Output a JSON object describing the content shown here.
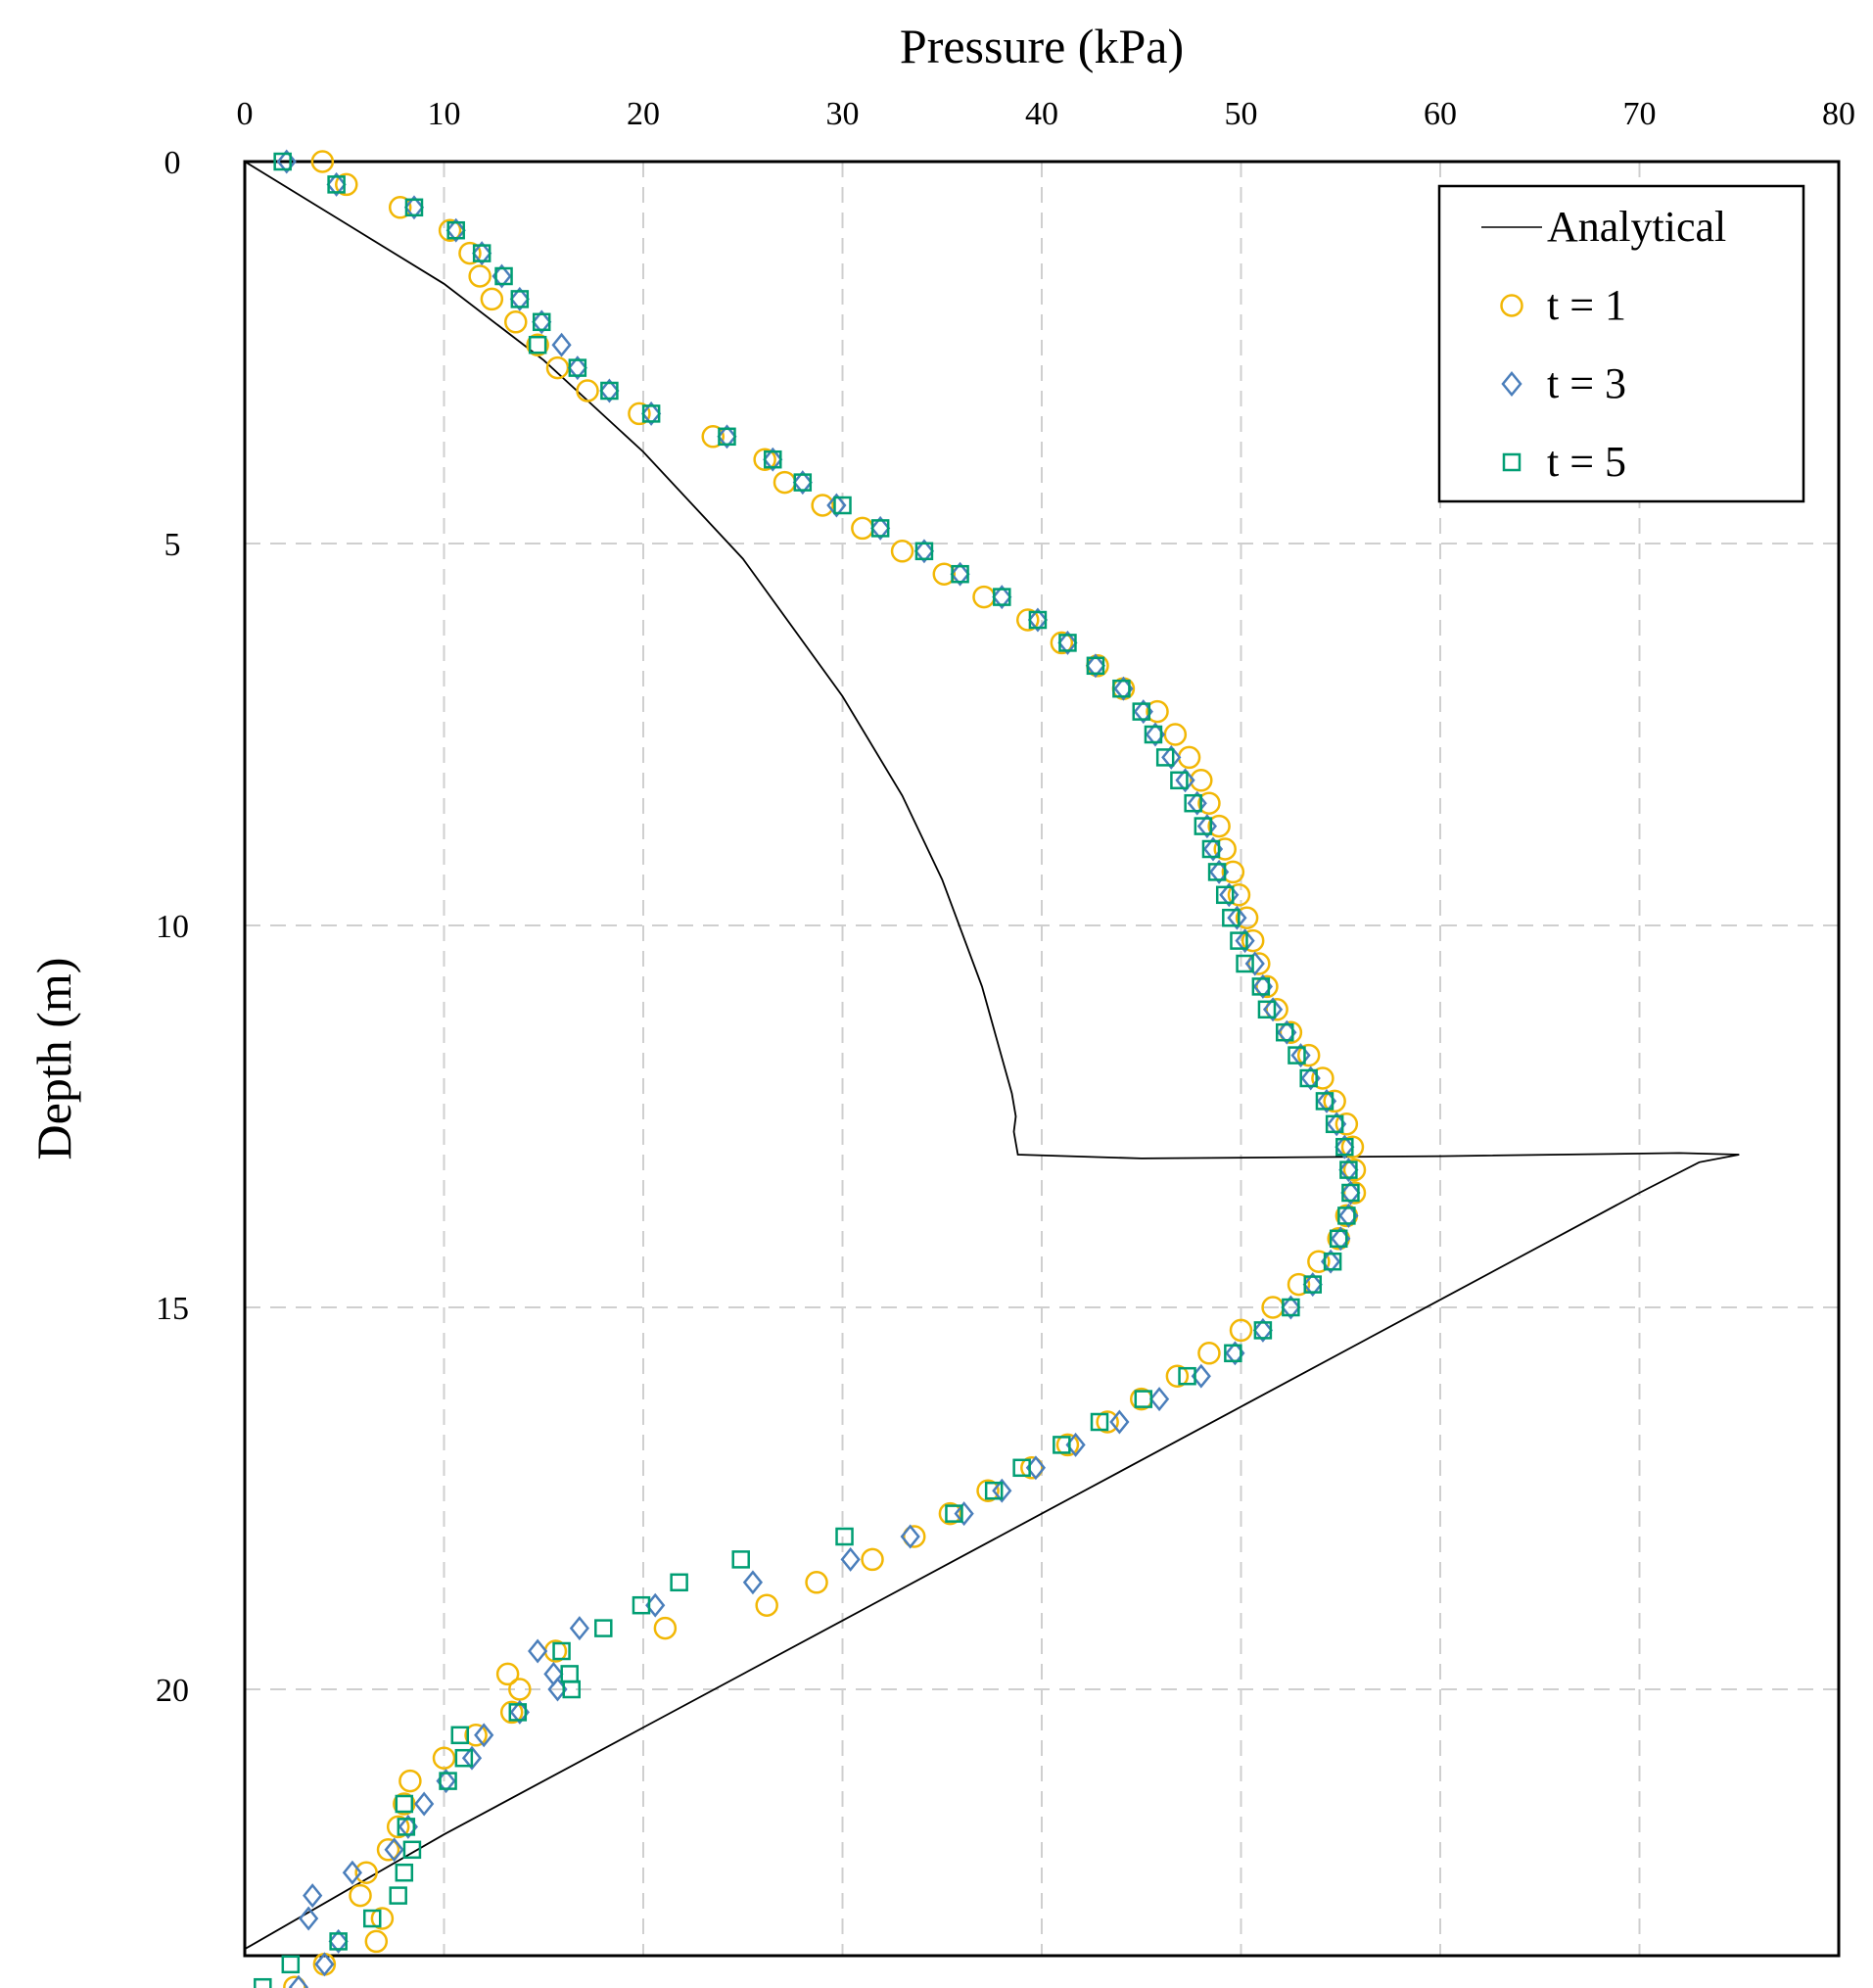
{
  "chart_data": {
    "type": "scatter",
    "title": "",
    "xlabel": "Pressure (kPa)",
    "ylabel": "Depth (m)",
    "xlim": [
      0,
      80
    ],
    "ylim": [
      0,
      23.5
    ],
    "y_inverted": true,
    "x_ticks": [
      0,
      10,
      20,
      30,
      40,
      50,
      60,
      70,
      80
    ],
    "y_ticks": [
      0,
      5,
      10,
      15,
      20
    ],
    "x_tick_labels": [
      "0",
      "10",
      "20",
      "30",
      "40",
      "50",
      "60",
      "70",
      "80"
    ],
    "y_tick_labels": [
      "0",
      "5",
      "10",
      "15",
      "20"
    ],
    "x_axis_position": "top",
    "grid": true,
    "legend_position": "top-right",
    "series": [
      {
        "name": "Analytical",
        "marker": "line",
        "color": "#000000",
        "points": [
          [
            0,
            0
          ],
          [
            5,
            0.8
          ],
          [
            10,
            1.6
          ],
          [
            15,
            2.6
          ],
          [
            20,
            3.8
          ],
          [
            25,
            5.2
          ],
          [
            30,
            7.0
          ],
          [
            33,
            8.3
          ],
          [
            35,
            9.4
          ],
          [
            37,
            10.8
          ],
          [
            38.5,
            12.2
          ],
          [
            38.7,
            12.5
          ],
          [
            38.6,
            12.7
          ],
          [
            38.8,
            13.0
          ],
          [
            45,
            13.05
          ],
          [
            60,
            13.02
          ],
          [
            72,
            12.98
          ],
          [
            75,
            13.0
          ],
          [
            73,
            13.1
          ],
          [
            70,
            13.5
          ],
          [
            60,
            14.9
          ],
          [
            50,
            16.3
          ],
          [
            40,
            17.7
          ],
          [
            30,
            19.1
          ],
          [
            20,
            20.5
          ],
          [
            10,
            21.9
          ],
          [
            0,
            23.4
          ]
        ]
      },
      {
        "name": "t = 1",
        "marker": "circle",
        "color": "#f2b705",
        "points": [
          [
            3.9,
            0
          ],
          [
            5.1,
            0.3
          ],
          [
            7.8,
            0.6
          ],
          [
            10.3,
            0.9
          ],
          [
            11.3,
            1.2
          ],
          [
            11.8,
            1.5
          ],
          [
            12.4,
            1.8
          ],
          [
            13.6,
            2.1
          ],
          [
            14.7,
            2.4
          ],
          [
            15.7,
            2.7
          ],
          [
            17.2,
            3.0
          ],
          [
            19.8,
            3.3
          ],
          [
            23.5,
            3.6
          ],
          [
            26.1,
            3.9
          ],
          [
            27.1,
            4.2
          ],
          [
            29.0,
            4.5
          ],
          [
            31.0,
            4.8
          ],
          [
            33.0,
            5.1
          ],
          [
            35.1,
            5.4
          ],
          [
            37.1,
            5.7
          ],
          [
            39.3,
            6.0
          ],
          [
            41.0,
            6.3
          ],
          [
            42.8,
            6.6
          ],
          [
            44.1,
            6.9
          ],
          [
            45.8,
            7.2
          ],
          [
            46.7,
            7.5
          ],
          [
            47.4,
            7.8
          ],
          [
            48.0,
            8.1
          ],
          [
            48.4,
            8.4
          ],
          [
            48.9,
            8.7
          ],
          [
            49.2,
            9.0
          ],
          [
            49.6,
            9.3
          ],
          [
            49.9,
            9.6
          ],
          [
            50.3,
            9.9
          ],
          [
            50.6,
            10.2
          ],
          [
            50.9,
            10.5
          ],
          [
            51.3,
            10.8
          ],
          [
            51.8,
            11.1
          ],
          [
            52.5,
            11.4
          ],
          [
            53.4,
            11.7
          ],
          [
            54.1,
            12.0
          ],
          [
            54.7,
            12.3
          ],
          [
            55.3,
            12.6
          ],
          [
            55.6,
            12.9
          ],
          [
            55.7,
            13.2
          ],
          [
            55.7,
            13.5
          ],
          [
            55.3,
            13.8
          ],
          [
            54.9,
            14.1
          ],
          [
            53.9,
            14.4
          ],
          [
            52.9,
            14.7
          ],
          [
            51.6,
            15.0
          ],
          [
            50.0,
            15.3
          ],
          [
            48.4,
            15.6
          ],
          [
            46.8,
            15.9
          ],
          [
            45.0,
            16.2
          ],
          [
            43.3,
            16.5
          ],
          [
            41.3,
            16.8
          ],
          [
            39.5,
            17.1
          ],
          [
            37.3,
            17.4
          ],
          [
            35.4,
            17.7
          ],
          [
            33.6,
            18.0
          ],
          [
            31.5,
            18.3
          ],
          [
            28.7,
            18.6
          ],
          [
            26.2,
            18.9
          ],
          [
            21.1,
            19.2
          ],
          [
            15.6,
            19.5
          ],
          [
            13.2,
            19.8
          ],
          [
            13.8,
            20.0
          ],
          [
            13.4,
            20.3
          ],
          [
            11.6,
            20.6
          ],
          [
            10.0,
            20.9
          ],
          [
            8.3,
            21.2
          ],
          [
            8.0,
            21.5
          ],
          [
            7.7,
            21.8
          ],
          [
            7.2,
            22.1
          ],
          [
            6.1,
            22.4
          ],
          [
            5.8,
            22.7
          ],
          [
            6.9,
            23.0
          ],
          [
            6.6,
            23.3
          ],
          [
            4.0,
            23.6
          ],
          [
            2.5,
            23.9
          ]
        ]
      },
      {
        "name": "t = 3",
        "marker": "diamond",
        "color": "#4a7ebb",
        "points": [
          [
            2.1,
            0
          ],
          [
            4.6,
            0.3
          ],
          [
            8.5,
            0.6
          ],
          [
            10.6,
            0.9
          ],
          [
            11.9,
            1.2
          ],
          [
            12.9,
            1.5
          ],
          [
            13.8,
            1.8
          ],
          [
            14.9,
            2.1
          ],
          [
            15.9,
            2.4
          ],
          [
            16.7,
            2.7
          ],
          [
            18.3,
            3.0
          ],
          [
            20.4,
            3.3
          ],
          [
            24.2,
            3.6
          ],
          [
            26.5,
            3.9
          ],
          [
            28.0,
            4.2
          ],
          [
            29.7,
            4.5
          ],
          [
            31.9,
            4.8
          ],
          [
            34.1,
            5.1
          ],
          [
            35.9,
            5.4
          ],
          [
            38.0,
            5.7
          ],
          [
            39.8,
            6.0
          ],
          [
            41.3,
            6.3
          ],
          [
            42.7,
            6.6
          ],
          [
            44.1,
            6.9
          ],
          [
            45.1,
            7.2
          ],
          [
            45.7,
            7.5
          ],
          [
            46.5,
            7.8
          ],
          [
            47.2,
            8.1
          ],
          [
            47.8,
            8.4
          ],
          [
            48.3,
            8.7
          ],
          [
            48.6,
            9.0
          ],
          [
            48.9,
            9.3
          ],
          [
            49.4,
            9.6
          ],
          [
            49.8,
            9.9
          ],
          [
            50.2,
            10.2
          ],
          [
            50.7,
            10.5
          ],
          [
            51.1,
            10.8
          ],
          [
            51.6,
            11.1
          ],
          [
            52.3,
            11.4
          ],
          [
            53.0,
            11.7
          ],
          [
            53.5,
            12.0
          ],
          [
            54.3,
            12.3
          ],
          [
            54.8,
            12.6
          ],
          [
            55.2,
            12.9
          ],
          [
            55.4,
            13.2
          ],
          [
            55.5,
            13.5
          ],
          [
            55.4,
            13.8
          ],
          [
            55.0,
            14.1
          ],
          [
            54.5,
            14.4
          ],
          [
            53.6,
            14.7
          ],
          [
            52.5,
            15.0
          ],
          [
            51.1,
            15.3
          ],
          [
            49.7,
            15.6
          ],
          [
            48.0,
            15.9
          ],
          [
            45.9,
            16.2
          ],
          [
            43.9,
            16.5
          ],
          [
            41.7,
            16.8
          ],
          [
            39.7,
            17.1
          ],
          [
            38.0,
            17.4
          ],
          [
            36.1,
            17.7
          ],
          [
            33.4,
            18.0
          ],
          [
            30.4,
            18.3
          ],
          [
            25.5,
            18.6
          ],
          [
            20.6,
            18.9
          ],
          [
            16.8,
            19.2
          ],
          [
            14.7,
            19.5
          ],
          [
            15.5,
            19.8
          ],
          [
            15.7,
            20.0
          ],
          [
            13.8,
            20.3
          ],
          [
            12.0,
            20.6
          ],
          [
            11.4,
            20.9
          ],
          [
            10.1,
            21.2
          ],
          [
            9.0,
            21.5
          ],
          [
            8.2,
            21.8
          ],
          [
            7.5,
            22.1
          ],
          [
            5.4,
            22.4
          ],
          [
            3.4,
            22.7
          ],
          [
            3.2,
            23.0
          ],
          [
            4.7,
            23.3
          ],
          [
            4.0,
            23.6
          ],
          [
            2.7,
            23.9
          ]
        ]
      },
      {
        "name": "t = 5",
        "marker": "square",
        "color": "#009e73",
        "points": [
          [
            1.9,
            0
          ],
          [
            4.6,
            0.3
          ],
          [
            8.5,
            0.6
          ],
          [
            10.6,
            0.9
          ],
          [
            11.9,
            1.2
          ],
          [
            13.0,
            1.5
          ],
          [
            13.8,
            1.8
          ],
          [
            14.9,
            2.1
          ],
          [
            14.7,
            2.4
          ],
          [
            16.7,
            2.7
          ],
          [
            18.3,
            3.0
          ],
          [
            20.4,
            3.3
          ],
          [
            24.2,
            3.6
          ],
          [
            26.5,
            3.9
          ],
          [
            28.0,
            4.2
          ],
          [
            30.0,
            4.5
          ],
          [
            31.9,
            4.8
          ],
          [
            34.1,
            5.1
          ],
          [
            35.9,
            5.4
          ],
          [
            38.0,
            5.7
          ],
          [
            39.8,
            6.0
          ],
          [
            41.3,
            6.3
          ],
          [
            42.7,
            6.6
          ],
          [
            44.0,
            6.9
          ],
          [
            45.0,
            7.2
          ],
          [
            45.6,
            7.5
          ],
          [
            46.2,
            7.8
          ],
          [
            46.9,
            8.1
          ],
          [
            47.6,
            8.4
          ],
          [
            48.1,
            8.7
          ],
          [
            48.5,
            9.0
          ],
          [
            48.8,
            9.3
          ],
          [
            49.2,
            9.6
          ],
          [
            49.5,
            9.9
          ],
          [
            49.9,
            10.2
          ],
          [
            50.2,
            10.5
          ],
          [
            51.0,
            10.8
          ],
          [
            51.3,
            11.1
          ],
          [
            52.2,
            11.4
          ],
          [
            52.8,
            11.7
          ],
          [
            53.4,
            12.0
          ],
          [
            54.2,
            12.3
          ],
          [
            54.7,
            12.6
          ],
          [
            55.2,
            12.9
          ],
          [
            55.4,
            13.2
          ],
          [
            55.5,
            13.5
          ],
          [
            55.3,
            13.8
          ],
          [
            54.9,
            14.1
          ],
          [
            54.6,
            14.4
          ],
          [
            53.6,
            14.7
          ],
          [
            52.5,
            15.0
          ],
          [
            51.1,
            15.3
          ],
          [
            49.6,
            15.6
          ],
          [
            47.3,
            15.9
          ],
          [
            45.1,
            16.2
          ],
          [
            42.9,
            16.5
          ],
          [
            41.0,
            16.8
          ],
          [
            39.0,
            17.1
          ],
          [
            37.6,
            17.4
          ],
          [
            35.6,
            17.7
          ],
          [
            30.1,
            18.0
          ],
          [
            24.9,
            18.3
          ],
          [
            21.8,
            18.6
          ],
          [
            19.9,
            18.9
          ],
          [
            18.0,
            19.2
          ],
          [
            15.9,
            19.5
          ],
          [
            16.3,
            19.8
          ],
          [
            16.4,
            20.0
          ],
          [
            13.7,
            20.3
          ],
          [
            10.8,
            20.6
          ],
          [
            11.0,
            20.9
          ],
          [
            10.2,
            21.2
          ],
          [
            8.0,
            21.5
          ],
          [
            8.1,
            21.8
          ],
          [
            8.4,
            22.1
          ],
          [
            8.0,
            22.4
          ],
          [
            7.7,
            22.7
          ],
          [
            6.4,
            23.0
          ],
          [
            4.7,
            23.3
          ],
          [
            2.3,
            23.6
          ],
          [
            0.9,
            23.9
          ]
        ]
      }
    ]
  }
}
